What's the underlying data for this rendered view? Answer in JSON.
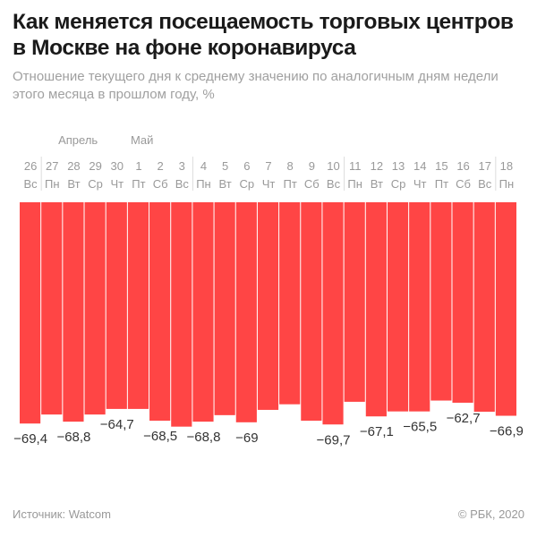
{
  "chart_data": {
    "type": "bar",
    "title": "Как меняется посещаемость торговых центров в Москве на фоне коронавируса",
    "subtitle": "Отношение текущего дня к среднему значению по аналогичным дням недели этого месяца в прошлом году, %",
    "months": [
      {
        "label": "Апрель",
        "start_index": 0
      },
      {
        "label": "Май",
        "start_index": 5
      }
    ],
    "categories": [
      "26",
      "27",
      "28",
      "29",
      "30",
      "1",
      "2",
      "3",
      "4",
      "5",
      "6",
      "7",
      "8",
      "9",
      "10",
      "11",
      "12",
      "13",
      "14",
      "15",
      "16",
      "17",
      "18"
    ],
    "weekdays": [
      "Вс",
      "Пн",
      "Вт",
      "Ср",
      "Чт",
      "Пт",
      "Сб",
      "Вс",
      "Пн",
      "Вт",
      "Ср",
      "Чт",
      "Пт",
      "Сб",
      "Вс",
      "Пн",
      "Вт",
      "Ср",
      "Чт",
      "Пт",
      "Сб",
      "Вс",
      "Пн"
    ],
    "values": [
      -69.4,
      -66.5,
      -68.8,
      -66.5,
      -64.7,
      -64.7,
      -68.5,
      -70.4,
      -68.8,
      -66.7,
      -69,
      -65,
      -63.2,
      -68.5,
      -69.7,
      -62.4,
      -67.1,
      -65.5,
      -65.5,
      -62,
      -62.7,
      -65.6,
      -66.9
    ],
    "data_labels": [
      "−69,4",
      null,
      "−68,8",
      null,
      "−64,7",
      null,
      "−68,5",
      null,
      "−68,8",
      null,
      "−69",
      null,
      null,
      null,
      "−69,7",
      null,
      "−67,1",
      null,
      "−65,5",
      null,
      "−62,7",
      null,
      "−66,9"
    ],
    "xlabel": "",
    "ylabel": "%",
    "ylim": [
      -72,
      0
    ],
    "bar_color": "#ff4545"
  },
  "footer": {
    "source": "Источник: Watcom",
    "copyright": "© РБК, 2020"
  }
}
